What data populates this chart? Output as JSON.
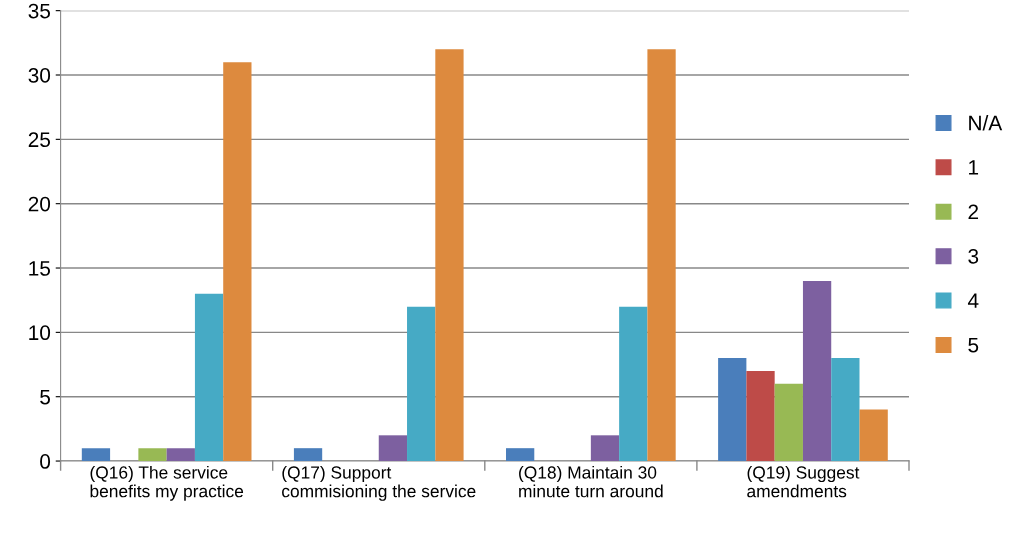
{
  "chart_data": {
    "type": "bar",
    "categories": [
      "(Q16) The service\nbenefits my practice",
      "(Q17) Support\ncommisioning the service",
      "(Q18) Maintain 30\nminute turn around",
      "(Q19) Suggest\namendments"
    ],
    "series": [
      {
        "name": "N/A",
        "color": "#4a7ebb",
        "values": [
          1,
          1,
          1,
          8
        ]
      },
      {
        "name": "1",
        "color": "#be4b48",
        "values": [
          0,
          0,
          0,
          7
        ]
      },
      {
        "name": "2",
        "color": "#98b954",
        "values": [
          1,
          0,
          0,
          6
        ]
      },
      {
        "name": "3",
        "color": "#7d60a0",
        "values": [
          1,
          2,
          2,
          14
        ]
      },
      {
        "name": "4",
        "color": "#46aac5",
        "values": [
          13,
          12,
          12,
          8
        ]
      },
      {
        "name": "5",
        "color": "#dd8a3e",
        "values": [
          31,
          32,
          32,
          4
        ]
      }
    ],
    "ylim": [
      0,
      35
    ],
    "yticks": [
      0,
      5,
      10,
      15,
      20,
      25,
      30,
      35
    ],
    "grid": "y",
    "legend": "right"
  }
}
